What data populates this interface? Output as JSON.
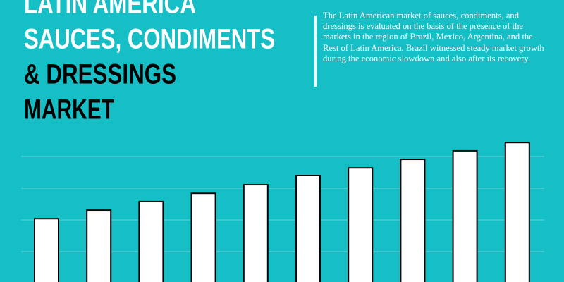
{
  "chart_data": {
    "type": "bar",
    "title": [
      "LATIN AMERICA",
      "SAUCES, CONDIMENTS",
      "& DRESSINGS",
      "MARKET"
    ],
    "description": "The Latin American market of sauces, condiments, and dressings is evaluated on the basis of the presence of the markets in the region of Brazil, Mexico, Argentina, and the Rest of Latin America. Brazil witnessed steady market growth during the economic slowdown and also after its recovery.",
    "categories": [
      null,
      null,
      null,
      null,
      null,
      null,
      null,
      null,
      null,
      null
    ],
    "values": [
      20.4,
      23.1,
      25.8,
      28.4,
      31.1,
      34.0,
      36.4,
      39.1,
      41.8,
      44.4
    ],
    "color": "#ffffff",
    "ylim": [
      0,
      50
    ],
    "yticks": [
      10,
      20,
      30,
      40
    ],
    "grid": true
  }
}
